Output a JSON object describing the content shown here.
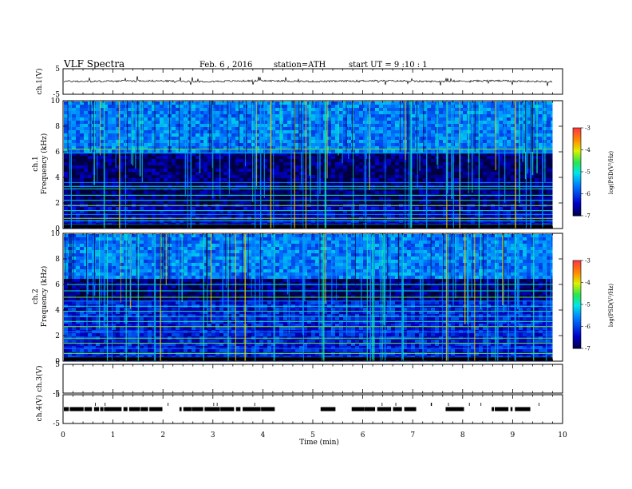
{
  "header": {
    "title": "VLF  Spectra",
    "date": "Feb. 6  , 2016",
    "station": "station=ATH",
    "start": "start  UT =   9  :10 : 1"
  },
  "colors": {
    "axis": "#000000",
    "spectrogram_low": "#000066",
    "spectrogram_mid": "#00c8ff",
    "spectrogram_high": "#ff3000",
    "trace": "#000000"
  },
  "chart_data": [
    {
      "type": "line",
      "id": "ch1-waveform",
      "ylabel": "ch.1(V)",
      "ylim": [
        -5,
        5
      ],
      "yticks": [
        "5",
        "-5"
      ],
      "description_of_signal": "noisy waveform centred near +0.1 V with spikes up to about ±1.5 V"
    },
    {
      "type": "heatmap",
      "id": "ch1-spectrogram",
      "ylabel_channel": "ch.1",
      "ylabel": "Frequency  (kHz)",
      "ylim": [
        0,
        10
      ],
      "yticks": [
        "0",
        "2",
        "4",
        "6",
        "8",
        "10"
      ],
      "colorbar": {
        "label": "log(PSD(V²/Hz)",
        "range": [
          -7,
          -3
        ],
        "ticks": [
          "-3",
          "-4",
          "-5",
          "-6",
          "-7"
        ]
      },
      "bands": [
        {
          "from_khz": 6.0,
          "to_khz": 10.0,
          "log_psd": -5.6
        },
        {
          "from_khz": 2.0,
          "to_khz": 6.0,
          "log_psd": -6.8
        },
        {
          "from_khz": 0.0,
          "to_khz": 2.0,
          "log_psd": -6.5
        }
      ],
      "persistent_line_khz": [
        0.3,
        0.6,
        0.8,
        1.1,
        1.4,
        1.8,
        2.2,
        2.6,
        3.1,
        3.3,
        3.6,
        5.9,
        6.2
      ]
    },
    {
      "type": "heatmap",
      "id": "ch2-spectrogram",
      "ylabel_channel": "ch.2",
      "ylabel": "Frequency  (kHz)",
      "ylim": [
        0,
        10
      ],
      "yticks": [
        "0",
        "2",
        "4",
        "6",
        "8",
        "10"
      ],
      "colorbar": {
        "label": "log(PSD(V²/Hz)",
        "range": [
          -7,
          -3
        ],
        "ticks": [
          "-3",
          "-4",
          "-5",
          "-6",
          "-7"
        ]
      },
      "bands": [
        {
          "from_khz": 6.5,
          "to_khz": 10.0,
          "log_psd": -5.6
        },
        {
          "from_khz": 4.8,
          "to_khz": 6.5,
          "log_psd": -6.8
        },
        {
          "from_khz": 0.0,
          "to_khz": 4.8,
          "log_psd": -6.2
        }
      ],
      "persistent_line_khz": [
        0.3,
        0.6,
        1.0,
        1.4,
        1.8,
        2.3,
        2.7,
        3.1,
        3.5,
        3.9,
        4.3,
        4.7,
        5.0,
        5.5,
        6.0
      ]
    },
    {
      "type": "line",
      "id": "ch3-waveform",
      "ylabel": "ch.3(V)",
      "ylim": [
        -5,
        5
      ],
      "yticks": [
        "5",
        "-5"
      ],
      "description_of_signal": "flat"
    },
    {
      "type": "line",
      "id": "ch4-waveform",
      "ylabel": "ch.4(V)",
      "ylim": [
        -5,
        5
      ],
      "yticks": [
        "5",
        "-5"
      ],
      "level_v": 0.0,
      "description_of_signal": "intermittent pulse train around 0 V"
    }
  ],
  "x_axis": {
    "label": "Time  (min)",
    "xlim": [
      0,
      10
    ],
    "ticks": [
      "0",
      "1",
      "2",
      "3",
      "4",
      "5",
      "6",
      "7",
      "8",
      "9",
      "10"
    ],
    "data_end_min": 9.8
  }
}
